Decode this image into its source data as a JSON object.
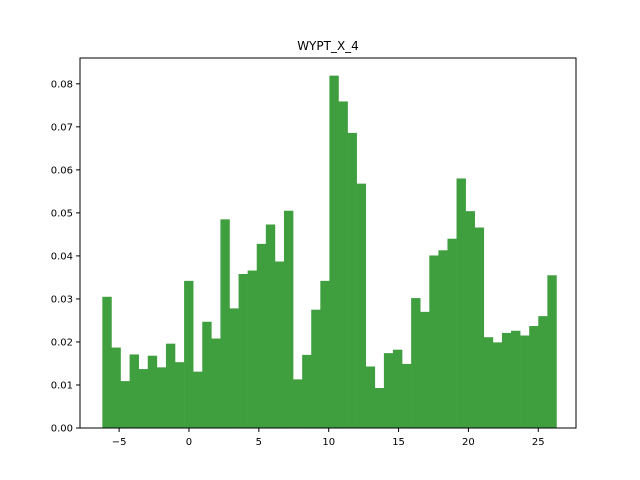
{
  "chart_data": {
    "type": "bar",
    "title": "WYPT_X_4",
    "xlabel": "",
    "ylabel": "",
    "xlim": [
      -7.8,
      27.7
    ],
    "ylim": [
      0,
      0.086
    ],
    "bar_color": "#3f9f3f",
    "x_ticks": [
      -5,
      0,
      5,
      10,
      15,
      20,
      25
    ],
    "x_tick_labels": [
      "−5",
      "0",
      "5",
      "10",
      "15",
      "20",
      "25"
    ],
    "y_ticks": [
      0,
      0.01,
      0.02,
      0.03,
      0.04,
      0.05,
      0.06,
      0.07,
      0.08
    ],
    "y_tick_labels": [
      "0.00",
      "0.01",
      "0.02",
      "0.03",
      "0.04",
      "0.05",
      "0.06",
      "0.07",
      "0.08"
    ],
    "bin_edges": [
      -6.2,
      -5.55,
      -4.9,
      -4.25,
      -3.6,
      -2.95,
      -2.3,
      -1.65,
      -1.0,
      -0.35,
      0.3,
      0.95,
      1.6,
      2.25,
      2.9,
      3.55,
      4.2,
      4.85,
      5.5,
      6.15,
      6.8,
      7.45,
      8.1,
      8.75,
      9.4,
      10.05,
      10.7,
      11.35,
      12.0,
      12.65,
      13.3,
      13.95,
      14.6,
      15.25,
      15.9,
      16.55,
      17.2,
      17.85,
      18.5,
      19.15,
      19.8,
      20.45,
      21.1,
      21.75,
      22.4,
      23.05,
      23.7,
      24.35,
      25.0,
      25.65,
      26.3
    ],
    "values": [
      0.0305,
      0.0187,
      0.0109,
      0.0171,
      0.0137,
      0.0168,
      0.0141,
      0.0196,
      0.0153,
      0.0342,
      0.0131,
      0.0247,
      0.0208,
      0.0485,
      0.0278,
      0.0358,
      0.0366,
      0.0428,
      0.0473,
      0.0387,
      0.0505,
      0.0113,
      0.017,
      0.0275,
      0.0342,
      0.0819,
      0.0759,
      0.0686,
      0.0568,
      0.0143,
      0.0093,
      0.0174,
      0.0182,
      0.0149,
      0.0302,
      0.027,
      0.0401,
      0.0413,
      0.044,
      0.058,
      0.0504,
      0.0466,
      0.0211,
      0.0199,
      0.0221,
      0.0226,
      0.0215,
      0.0237,
      0.026,
      0.0355
    ]
  }
}
